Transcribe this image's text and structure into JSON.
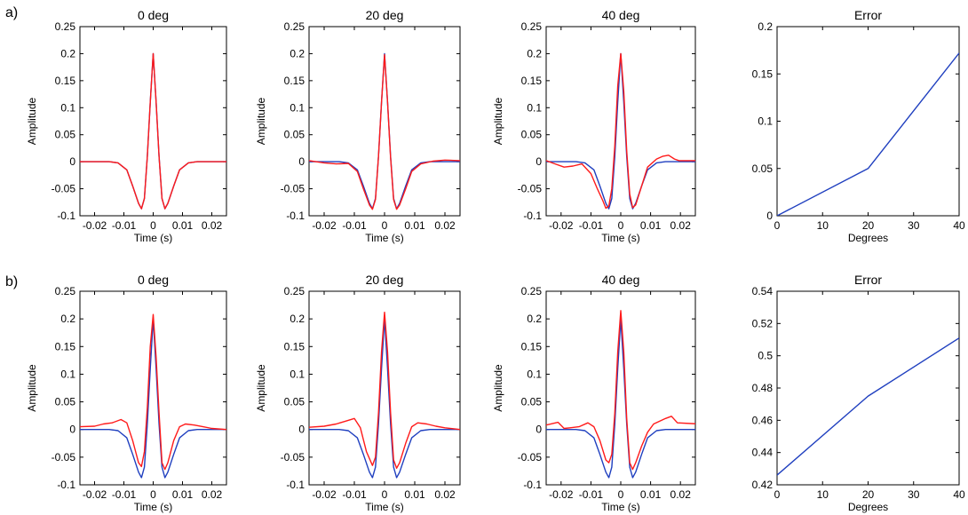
{
  "row_labels": [
    "a)",
    "b)"
  ],
  "colors": {
    "reference": "#1f3fbf",
    "estimate": "#ff1a1a",
    "axis": "#000000"
  },
  "chart_data": [
    {
      "type": "line",
      "title": "0 deg",
      "xlabel": "Time (s)",
      "ylabel": "Amplitude",
      "xlim": [
        -0.025,
        0.025
      ],
      "ylim": [
        -0.1,
        0.25
      ],
      "xticks": [
        -0.02,
        -0.01,
        0,
        0.01,
        0.02
      ],
      "xtick_labels": [
        "-0.02",
        "-0.01",
        "0",
        "0.01",
        "0.02"
      ],
      "yticks": [
        -0.1,
        -0.05,
        0,
        0.05,
        0.1,
        0.15,
        0.2,
        0.25
      ],
      "ytick_labels": [
        "-0.1",
        "-0.05",
        "0",
        "0.05",
        "0.1",
        "0.15",
        "0.2",
        "0.25"
      ],
      "series": [
        {
          "color": "#1f3fbf",
          "x": [
            -0.0265,
            -0.025,
            -0.02,
            -0.015,
            -0.012,
            -0.009,
            -0.007,
            -0.005,
            -0.004,
            -0.003,
            -0.002,
            -0.001,
            0,
            0.001,
            0.002,
            0.003,
            0.004,
            0.005,
            0.007,
            0.009,
            0.012,
            0.015,
            0.02,
            0.025,
            0.0265
          ],
          "y": [
            0,
            0,
            0,
            0,
            -0.002,
            -0.015,
            -0.045,
            -0.077,
            -0.087,
            -0.068,
            0.01,
            0.11,
            0.2,
            0.11,
            0.01,
            -0.068,
            -0.087,
            -0.077,
            -0.045,
            -0.015,
            -0.002,
            0,
            0,
            0,
            0
          ]
        },
        {
          "color": "#ff1a1a",
          "x": [
            -0.0265,
            -0.025,
            -0.02,
            -0.015,
            -0.012,
            -0.009,
            -0.007,
            -0.005,
            -0.004,
            -0.003,
            -0.002,
            -0.001,
            0,
            0.001,
            0.002,
            0.003,
            0.004,
            0.005,
            0.007,
            0.009,
            0.012,
            0.015,
            0.02,
            0.025,
            0.0265
          ],
          "y": [
            0,
            0,
            0,
            0,
            -0.002,
            -0.015,
            -0.045,
            -0.077,
            -0.087,
            -0.068,
            0.01,
            0.11,
            0.2,
            0.11,
            0.01,
            -0.068,
            -0.087,
            -0.077,
            -0.045,
            -0.015,
            -0.002,
            0,
            0,
            0,
            0
          ]
        }
      ]
    },
    {
      "type": "line",
      "title": "20 deg",
      "xlabel": "Time (s)",
      "ylabel": "Amplitude",
      "xlim": [
        -0.025,
        0.025
      ],
      "ylim": [
        -0.1,
        0.25
      ],
      "xticks": [
        -0.02,
        -0.01,
        0,
        0.01,
        0.02
      ],
      "xtick_labels": [
        "-0.02",
        "-0.01",
        "0",
        "0.01",
        "0.02"
      ],
      "yticks": [
        -0.1,
        -0.05,
        0,
        0.05,
        0.1,
        0.15,
        0.2,
        0.25
      ],
      "ytick_labels": [
        "-0.1",
        "-0.05",
        "0",
        "0.05",
        "0.1",
        "0.15",
        "0.2",
        "0.25"
      ],
      "series": [
        {
          "color": "#1f3fbf",
          "x": [
            -0.0265,
            -0.025,
            -0.02,
            -0.015,
            -0.012,
            -0.009,
            -0.007,
            -0.005,
            -0.004,
            -0.003,
            -0.002,
            -0.001,
            0,
            0.001,
            0.002,
            0.003,
            0.004,
            0.005,
            0.007,
            0.009,
            0.012,
            0.015,
            0.02,
            0.025,
            0.0265
          ],
          "y": [
            0,
            0,
            0,
            0,
            -0.002,
            -0.015,
            -0.045,
            -0.077,
            -0.087,
            -0.068,
            0.01,
            0.11,
            0.2,
            0.11,
            0.01,
            -0.068,
            -0.087,
            -0.077,
            -0.045,
            -0.015,
            -0.002,
            0,
            0,
            0,
            0
          ]
        },
        {
          "color": "#ff1a1a",
          "x": [
            -0.0265,
            -0.025,
            -0.02,
            -0.016,
            -0.012,
            -0.009,
            -0.007,
            -0.005,
            -0.004,
            -0.003,
            -0.002,
            -0.001,
            0,
            0.001,
            0.002,
            0.003,
            0.004,
            0.005,
            0.007,
            0.009,
            0.012,
            0.016,
            0.02,
            0.025,
            0.0265
          ],
          "y": [
            0.001,
            0.002,
            -0.002,
            -0.004,
            -0.003,
            -0.018,
            -0.05,
            -0.08,
            -0.088,
            -0.07,
            0.01,
            0.11,
            0.198,
            0.11,
            0.008,
            -0.07,
            -0.088,
            -0.08,
            -0.05,
            -0.018,
            -0.004,
            0.001,
            0.003,
            0.002,
            0.001
          ]
        }
      ]
    },
    {
      "type": "line",
      "title": "40 deg",
      "xlabel": "Time (s)",
      "ylabel": "Amplitude",
      "xlim": [
        -0.025,
        0.025
      ],
      "ylim": [
        -0.1,
        0.25
      ],
      "xticks": [
        -0.02,
        -0.01,
        0,
        0.01,
        0.02
      ],
      "xtick_labels": [
        "-0.02",
        "-0.01",
        "0",
        "0.01",
        "0.02"
      ],
      "yticks": [
        -0.1,
        -0.05,
        0,
        0.05,
        0.1,
        0.15,
        0.2,
        0.25
      ],
      "ytick_labels": [
        "-0.1",
        "-0.05",
        "0",
        "0.05",
        "0.1",
        "0.15",
        "0.2",
        "0.25"
      ],
      "series": [
        {
          "color": "#1f3fbf",
          "x": [
            -0.0265,
            -0.025,
            -0.02,
            -0.015,
            -0.012,
            -0.009,
            -0.007,
            -0.005,
            -0.004,
            -0.003,
            -0.002,
            -0.001,
            0,
            0.001,
            0.002,
            0.003,
            0.004,
            0.005,
            0.007,
            0.009,
            0.012,
            0.015,
            0.02,
            0.025,
            0.0265
          ],
          "y": [
            0,
            0,
            0,
            0,
            -0.002,
            -0.015,
            -0.045,
            -0.077,
            -0.087,
            -0.068,
            0.01,
            0.11,
            0.2,
            0.11,
            0.01,
            -0.068,
            -0.087,
            -0.077,
            -0.045,
            -0.015,
            -0.002,
            0,
            0,
            0,
            0
          ]
        },
        {
          "color": "#ff1a1a",
          "x": [
            -0.0265,
            -0.025,
            -0.022,
            -0.019,
            -0.016,
            -0.013,
            -0.01,
            -0.008,
            -0.006,
            -0.005,
            -0.004,
            -0.003,
            -0.002,
            -0.001,
            0,
            0.001,
            0.002,
            0.003,
            0.004,
            0.005,
            0.007,
            0.009,
            0.012,
            0.014,
            0.016,
            0.018,
            0.0195,
            0.0265
          ],
          "y": [
            0.003,
            0.002,
            -0.004,
            -0.01,
            -0.008,
            -0.004,
            -0.022,
            -0.048,
            -0.072,
            -0.086,
            -0.082,
            -0.05,
            0.03,
            0.14,
            0.2,
            0.13,
            0.02,
            -0.06,
            -0.085,
            -0.08,
            -0.045,
            -0.01,
            0.005,
            0.01,
            0.012,
            0.005,
            0.002,
            0.002
          ]
        }
      ]
    },
    {
      "type": "line",
      "title": "Error",
      "xlabel": "Degrees",
      "ylabel": "",
      "xlim": [
        0,
        40
      ],
      "ylim": [
        0,
        0.2
      ],
      "xticks": [
        0,
        10,
        20,
        30,
        40
      ],
      "xtick_labels": [
        "0",
        "10",
        "20",
        "30",
        "40"
      ],
      "yticks": [
        0,
        0.05,
        0.1,
        0.15,
        0.2
      ],
      "ytick_labels": [
        "0",
        "0.05",
        "0.1",
        "0.15",
        "0.2"
      ],
      "series": [
        {
          "color": "#1f3fbf",
          "x": [
            0,
            20,
            40
          ],
          "y": [
            0,
            0.05,
            0.172
          ]
        }
      ]
    },
    {
      "type": "line",
      "title": "0 deg",
      "xlabel": "Time (s)",
      "ylabel": "Amplitude",
      "xlim": [
        -0.025,
        0.025
      ],
      "ylim": [
        -0.1,
        0.25
      ],
      "xticks": [
        -0.02,
        -0.01,
        0,
        0.01,
        0.02
      ],
      "xtick_labels": [
        "-0.02",
        "-0.01",
        "0",
        "0.01",
        "0.02"
      ],
      "yticks": [
        -0.1,
        -0.05,
        0,
        0.05,
        0.1,
        0.15,
        0.2,
        0.25
      ],
      "ytick_labels": [
        "-0.1",
        "-0.05",
        "0",
        "0.05",
        "0.1",
        "0.15",
        "0.2",
        "0.25"
      ],
      "series": [
        {
          "color": "#1f3fbf",
          "x": [
            -0.0265,
            -0.025,
            -0.02,
            -0.015,
            -0.012,
            -0.009,
            -0.007,
            -0.005,
            -0.004,
            -0.003,
            -0.002,
            -0.001,
            0,
            0.001,
            0.002,
            0.003,
            0.004,
            0.005,
            0.007,
            0.009,
            0.012,
            0.015,
            0.02,
            0.025,
            0.0265
          ],
          "y": [
            0,
            0,
            0,
            0,
            -0.002,
            -0.015,
            -0.045,
            -0.077,
            -0.087,
            -0.068,
            0.01,
            0.11,
            0.2,
            0.11,
            0.01,
            -0.068,
            -0.087,
            -0.077,
            -0.045,
            -0.015,
            -0.002,
            0,
            0,
            0,
            0
          ]
        },
        {
          "color": "#ff1a1a",
          "x": [
            -0.0265,
            -0.025,
            -0.02,
            -0.017,
            -0.014,
            -0.011,
            -0.009,
            -0.007,
            -0.005,
            -0.004,
            -0.003,
            -0.002,
            -0.001,
            0,
            0.001,
            0.002,
            0.003,
            0.004,
            0.005,
            0.007,
            0.009,
            0.011,
            0.014,
            0.017,
            0.02,
            0.025,
            0.0265
          ],
          "y": [
            0.003,
            0.005,
            0.006,
            0.01,
            0.012,
            0.018,
            0.012,
            -0.02,
            -0.06,
            -0.067,
            -0.04,
            0.04,
            0.15,
            0.208,
            0.13,
            0.03,
            -0.06,
            -0.072,
            -0.06,
            -0.02,
            0.005,
            0.01,
            0.008,
            0.005,
            0.002,
            0,
            -0.003
          ]
        }
      ]
    },
    {
      "type": "line",
      "title": "20 deg",
      "xlabel": "Time (s)",
      "ylabel": "Amplitude",
      "xlim": [
        -0.025,
        0.025
      ],
      "ylim": [
        -0.1,
        0.25
      ],
      "xticks": [
        -0.02,
        -0.01,
        0,
        0.01,
        0.02
      ],
      "xtick_labels": [
        "-0.02",
        "-0.01",
        "0",
        "0.01",
        "0.02"
      ],
      "yticks": [
        -0.1,
        -0.05,
        0,
        0.05,
        0.1,
        0.15,
        0.2,
        0.25
      ],
      "ytick_labels": [
        "-0.1",
        "-0.05",
        "0",
        "0.05",
        "0.1",
        "0.15",
        "0.2",
        "0.25"
      ],
      "series": [
        {
          "color": "#1f3fbf",
          "x": [
            -0.0265,
            -0.025,
            -0.02,
            -0.015,
            -0.012,
            -0.009,
            -0.007,
            -0.005,
            -0.004,
            -0.003,
            -0.002,
            -0.001,
            0,
            0.001,
            0.002,
            0.003,
            0.004,
            0.005,
            0.007,
            0.009,
            0.012,
            0.015,
            0.02,
            0.025,
            0.0265
          ],
          "y": [
            0,
            0,
            0,
            0,
            -0.002,
            -0.015,
            -0.045,
            -0.077,
            -0.087,
            -0.068,
            0.01,
            0.11,
            0.2,
            0.11,
            0.01,
            -0.068,
            -0.087,
            -0.077,
            -0.045,
            -0.015,
            -0.002,
            0,
            0,
            0,
            0
          ]
        },
        {
          "color": "#ff1a1a",
          "x": [
            -0.0265,
            -0.025,
            -0.02,
            -0.016,
            -0.013,
            -0.01,
            -0.008,
            -0.006,
            -0.004,
            -0.003,
            -0.002,
            -0.001,
            0,
            0.001,
            0.002,
            0.003,
            0.004,
            0.005,
            0.007,
            0.009,
            0.011,
            0.014,
            0.017,
            0.02,
            0.025,
            0.0265
          ],
          "y": [
            0.003,
            0.004,
            0.006,
            0.01,
            0.015,
            0.02,
            0.003,
            -0.04,
            -0.065,
            -0.05,
            0.03,
            0.14,
            0.212,
            0.14,
            0.03,
            -0.055,
            -0.07,
            -0.06,
            -0.025,
            0.005,
            0.012,
            0.01,
            0.006,
            0.003,
            0,
            -0.004
          ]
        }
      ]
    },
    {
      "type": "line",
      "title": "40 deg",
      "xlabel": "Time (s)",
      "ylabel": "Amplitude",
      "xlim": [
        -0.025,
        0.025
      ],
      "ylim": [
        -0.1,
        0.25
      ],
      "xticks": [
        -0.02,
        -0.01,
        0,
        0.01,
        0.02
      ],
      "xtick_labels": [
        "-0.02",
        "-0.01",
        "0",
        "0.01",
        "0.02"
      ],
      "yticks": [
        -0.1,
        -0.05,
        0,
        0.05,
        0.1,
        0.15,
        0.2,
        0.25
      ],
      "ytick_labels": [
        "-0.1",
        "-0.05",
        "0",
        "0.05",
        "0.1",
        "0.15",
        "0.2",
        "0.25"
      ],
      "series": [
        {
          "color": "#1f3fbf",
          "x": [
            -0.0265,
            -0.025,
            -0.02,
            -0.015,
            -0.012,
            -0.009,
            -0.007,
            -0.005,
            -0.004,
            -0.003,
            -0.002,
            -0.001,
            0,
            0.001,
            0.002,
            0.003,
            0.004,
            0.005,
            0.007,
            0.009,
            0.012,
            0.015,
            0.02,
            0.025,
            0.0265
          ],
          "y": [
            0,
            0,
            0,
            0,
            -0.002,
            -0.015,
            -0.045,
            -0.077,
            -0.087,
            -0.068,
            0.01,
            0.11,
            0.2,
            0.11,
            0.01,
            -0.068,
            -0.087,
            -0.077,
            -0.045,
            -0.015,
            -0.002,
            0,
            0,
            0,
            0
          ]
        },
        {
          "color": "#ff1a1a",
          "x": [
            -0.0265,
            -0.025,
            -0.021,
            -0.019,
            -0.017,
            -0.014,
            -0.011,
            -0.009,
            -0.007,
            -0.005,
            -0.004,
            -0.003,
            -0.002,
            -0.001,
            0,
            0.001,
            0.002,
            0.003,
            0.004,
            0.005,
            0.007,
            0.009,
            0.011,
            0.013,
            0.015,
            0.017,
            0.019,
            0.0265
          ],
          "y": [
            0.01,
            0.008,
            0.013,
            0.002,
            0.003,
            0.005,
            0.012,
            0.005,
            -0.02,
            -0.055,
            -0.06,
            -0.045,
            0.03,
            0.14,
            0.215,
            0.14,
            0.02,
            -0.06,
            -0.072,
            -0.06,
            -0.03,
            -0.005,
            0.01,
            0.015,
            0.02,
            0.024,
            0.012,
            0.01
          ]
        }
      ]
    },
    {
      "type": "line",
      "title": "Error",
      "xlabel": "Degrees",
      "ylabel": "",
      "xlim": [
        0,
        40
      ],
      "ylim": [
        0.42,
        0.54
      ],
      "xticks": [
        0,
        10,
        20,
        30,
        40
      ],
      "xtick_labels": [
        "0",
        "10",
        "20",
        "30",
        "40"
      ],
      "yticks": [
        0.42,
        0.44,
        0.46,
        0.48,
        0.5,
        0.52,
        0.54
      ],
      "ytick_labels": [
        "0.42",
        "0.44",
        "0.46",
        "0.48",
        "0.5",
        "0.52",
        "0.54"
      ],
      "series": [
        {
          "color": "#1f3fbf",
          "x": [
            0,
            20,
            40
          ],
          "y": [
            0.426,
            0.475,
            0.511
          ]
        }
      ]
    }
  ]
}
